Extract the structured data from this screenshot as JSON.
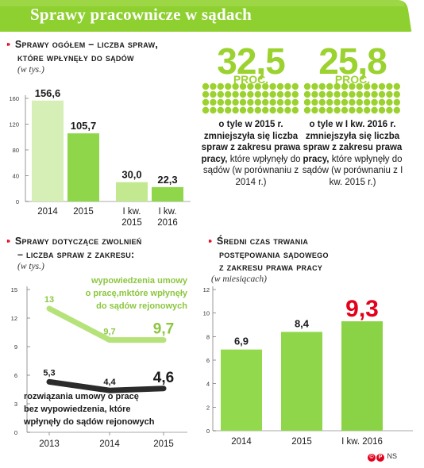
{
  "banner": {
    "title": "Sprawy pracownicze w sądach"
  },
  "stats": [
    {
      "value": "32,5",
      "unit": "PROC.",
      "bold": "o tyle w 2015 r. zmniejszyła się liczba spraw z zakresu prawa pracy,",
      "rest": "które wpłynęły do sądów (w porównaniu z 2014 r.)"
    },
    {
      "value": "25,8",
      "unit": "PROC.",
      "bold": "o tyle w I kw. 2016 r. zmniejszyła się liczba spraw z zakresu prawa pracy,",
      "rest": "które wpłynęły do sądów (w porównaniu z I kw. 2015 r.)"
    }
  ],
  "colors": {
    "accent": "#9bd22f",
    "bar": "#8fd64a",
    "bar_light": "#d5efb6",
    "red": "#e3001b",
    "dark": "#2b2b2b"
  },
  "chart_data": [
    {
      "type": "bar",
      "title": "Sprawy ogółem – liczba spraw, które wpłynęły do sądów",
      "unit": "(w tys.)",
      "categories": [
        "2014",
        "2015",
        "I kw. 2015",
        "I kw. 2016"
      ],
      "category_lines": [
        [
          "2014"
        ],
        [
          "2015"
        ],
        [
          "I kw.",
          "2015"
        ],
        [
          "I kw.",
          "2016"
        ]
      ],
      "values": [
        156.6,
        105.7,
        30.0,
        22.3
      ],
      "value_labels": [
        "156,6",
        "105,7",
        "30,0",
        "22,3"
      ],
      "yticks": [
        "0",
        "40",
        "80",
        "120",
        "160"
      ],
      "ylim": [
        0,
        160
      ]
    },
    {
      "type": "line",
      "title": "Sprawy dotyczące zwolnień – liczba spraw z zakresu:",
      "unit": "(w tys.)",
      "categories": [
        "2013",
        "2014",
        "2015"
      ],
      "yticks": [
        "0",
        "3",
        "6",
        "9",
        "12",
        "15"
      ],
      "ylim": [
        0,
        15
      ],
      "series": [
        {
          "name": "wypowiedzenia umowy o pracę,mktóre wpłynęły do sądów rejonowych",
          "name_lines": [
            "wypowiedzenia umowy",
            "o pracę,mktóre wpłynęły",
            "do sądów rejonowych"
          ],
          "values": [
            13,
            9.7,
            9.7
          ],
          "value_labels": [
            "13",
            "9,7",
            "9,7"
          ]
        },
        {
          "name": "rozwiązania umowy o pracę bez wypowiedzenia, które wpłynęły do sądów rejonowych",
          "name_lines": [
            "rozwiązania umowy o pracę",
            "bez wypowiedzenia, które",
            "wpłynęły do sądów rejonowych"
          ],
          "values": [
            5.3,
            4.4,
            4.6
          ],
          "value_labels": [
            "5,3",
            "4,4",
            "4,6"
          ]
        }
      ]
    },
    {
      "type": "bar",
      "title": "Średni czas trwania postępowania sądowego z zakresu prawa pracy",
      "unit": "(w miesiącach)",
      "categories": [
        "2014",
        "2015",
        "I kw. 2016"
      ],
      "values": [
        6.9,
        8.4,
        9.3
      ],
      "value_labels": [
        "6,9",
        "8,4",
        "9,3"
      ],
      "yticks": [
        "0",
        "2",
        "4",
        "6",
        "8",
        "10",
        "12"
      ],
      "ylim": [
        0,
        12
      ]
    }
  ],
  "section_titles": {
    "s1": [
      "Sprawy ogółem – liczba spraw,",
      "które wpłynęły do sądów"
    ],
    "s2": [
      "Sprawy dotyczące zwolnień",
      "– liczba spraw z zakresu:"
    ],
    "s3": [
      "Średni czas trwania",
      "postępowania sądowego",
      "z zakresu prawa pracy"
    ]
  },
  "footer": {
    "credit": "NS"
  }
}
